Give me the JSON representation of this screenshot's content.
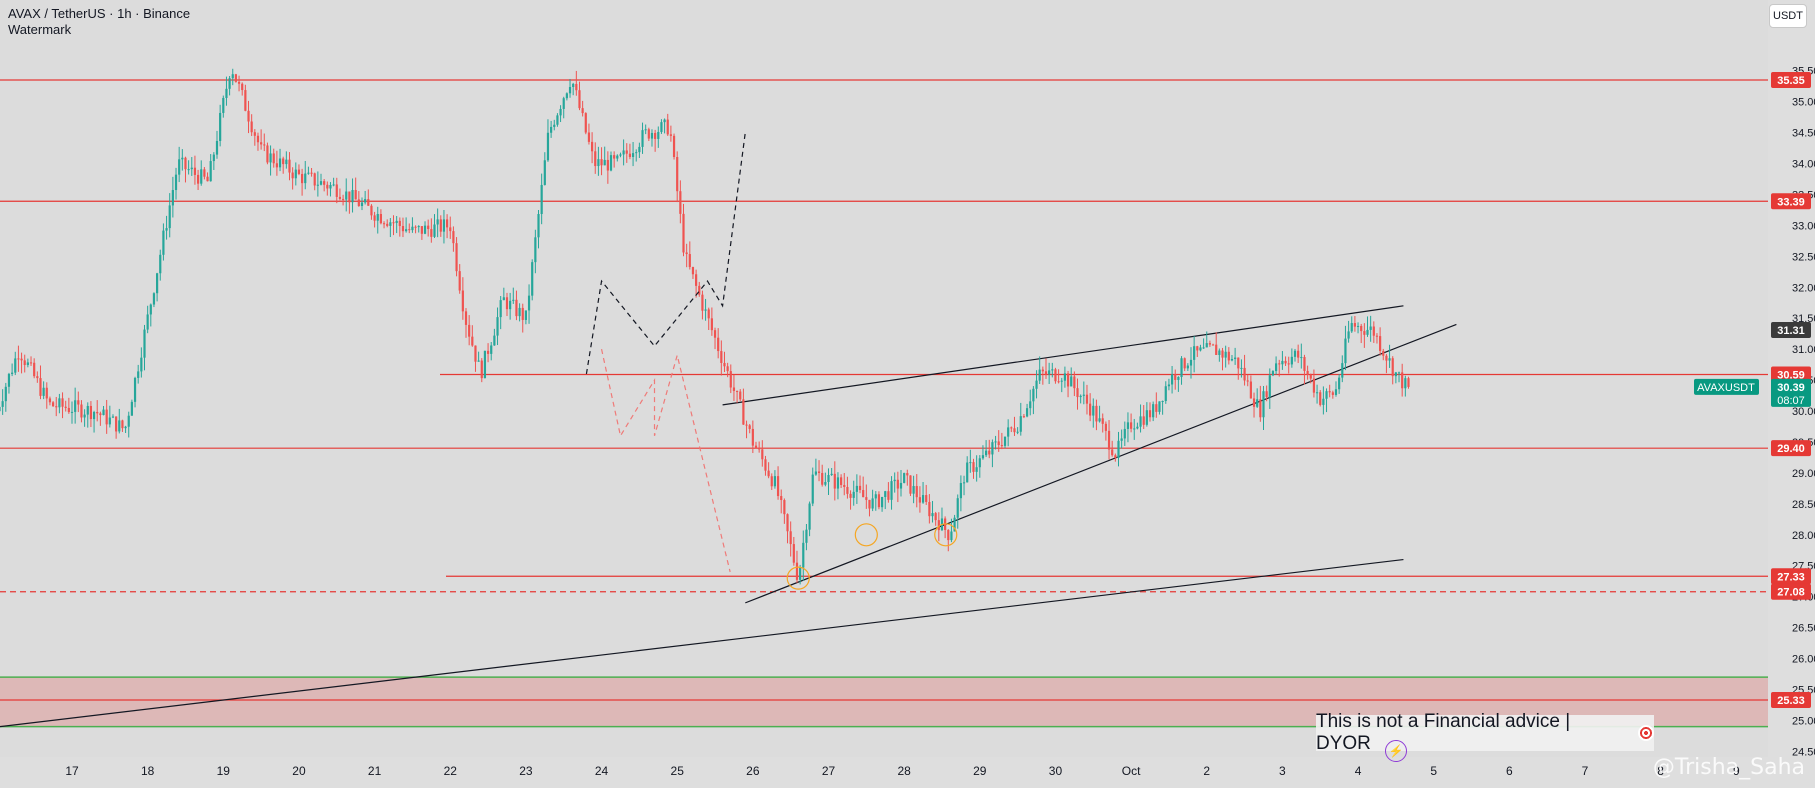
{
  "header": {
    "symbol": "AVAX / TetherUS · 1h · Binance",
    "watermark": "Watermark"
  },
  "currency_button": "USDT",
  "disclaimer": "This is not a Financial advice | DYOR",
  "handle": "@Trisha_Saha",
  "colors": {
    "background": "#dcdcdc",
    "up": "#26a69a",
    "down": "#ef5350",
    "resistance": "#e53935",
    "support_zone": "#4caf50",
    "symbol_tag": "#089981"
  },
  "chart_data": {
    "type": "candlestick",
    "symbol": "AVAXUSDT",
    "timeframe": "1h",
    "ylim": [
      24.28,
      36.4
    ],
    "y_ticks": [
      "24.50",
      "25.00",
      "25.50",
      "26.00",
      "26.50",
      "27.00",
      "27.50",
      "28.00",
      "28.50",
      "29.00",
      "29.50",
      "30.00",
      "30.50",
      "31.00",
      "31.50",
      "32.00",
      "32.50",
      "33.00",
      "33.50",
      "34.00",
      "34.50",
      "35.00",
      "35.50"
    ],
    "x_ticks": [
      "17",
      "18",
      "19",
      "20",
      "21",
      "22",
      "23",
      "24",
      "25",
      "26",
      "27",
      "28",
      "29",
      "30",
      "Oct",
      "2",
      "3",
      "4",
      "5",
      "6",
      "7",
      "8",
      "9"
    ],
    "horizontal_levels": [
      {
        "label": "35.35",
        "value": 35.35
      },
      {
        "label": "33.39",
        "value": 33.39
      },
      {
        "label": "31.31",
        "value": 31.31,
        "style": "gray"
      },
      {
        "label": "30.59",
        "value": 30.59
      },
      {
        "label": "29.40",
        "value": 29.4
      },
      {
        "label": "27.33",
        "value": 27.33
      },
      {
        "label": "27.08",
        "value": 27.08,
        "style": "dashed"
      },
      {
        "label": "25.33",
        "value": 25.33
      }
    ],
    "current_price": {
      "symbol": "AVAXUSDT",
      "price": "30.39",
      "countdown": "08:07"
    },
    "support_zone": [
      24.9,
      25.7
    ],
    "price_path": [
      {
        "day": 16.0,
        "price": 30.0
      },
      {
        "day": 16.3,
        "price": 31.0
      },
      {
        "day": 16.7,
        "price": 30.1
      },
      {
        "day": 17.3,
        "price": 30.0
      },
      {
        "day": 17.7,
        "price": 29.7
      },
      {
        "day": 18.0,
        "price": 31.5
      },
      {
        "day": 18.4,
        "price": 34.0
      },
      {
        "day": 18.8,
        "price": 33.7
      },
      {
        "day": 19.1,
        "price": 35.6
      },
      {
        "day": 19.5,
        "price": 34.2
      },
      {
        "day": 20.0,
        "price": 33.8
      },
      {
        "day": 20.5,
        "price": 33.6
      },
      {
        "day": 21.0,
        "price": 33.2
      },
      {
        "day": 21.5,
        "price": 32.9
      },
      {
        "day": 22.0,
        "price": 33.0
      },
      {
        "day": 22.2,
        "price": 31.5
      },
      {
        "day": 22.4,
        "price": 30.6
      },
      {
        "day": 22.7,
        "price": 31.8
      },
      {
        "day": 23.0,
        "price": 31.5
      },
      {
        "day": 23.3,
        "price": 34.5
      },
      {
        "day": 23.6,
        "price": 35.4
      },
      {
        "day": 23.9,
        "price": 34.0
      },
      {
        "day": 24.2,
        "price": 34.0
      },
      {
        "day": 24.6,
        "price": 34.5
      },
      {
        "day": 24.9,
        "price": 34.6
      },
      {
        "day": 25.1,
        "price": 32.5
      },
      {
        "day": 25.4,
        "price": 31.5
      },
      {
        "day": 25.7,
        "price": 30.5
      },
      {
        "day": 26.0,
        "price": 29.5
      },
      {
        "day": 26.3,
        "price": 28.8
      },
      {
        "day": 26.6,
        "price": 27.3
      },
      {
        "day": 26.8,
        "price": 29.0
      },
      {
        "day": 27.2,
        "price": 28.8
      },
      {
        "day": 27.6,
        "price": 28.5
      },
      {
        "day": 28.0,
        "price": 28.9
      },
      {
        "day": 28.4,
        "price": 28.3
      },
      {
        "day": 28.6,
        "price": 28.0
      },
      {
        "day": 28.8,
        "price": 29.0
      },
      {
        "day": 29.1,
        "price": 29.3
      },
      {
        "day": 29.5,
        "price": 29.8
      },
      {
        "day": 29.8,
        "price": 30.6
      },
      {
        "day": 30.1,
        "price": 30.6
      },
      {
        "day": 30.5,
        "price": 30.0
      },
      {
        "day": 30.8,
        "price": 29.3
      },
      {
        "day": 31.0,
        "price": 29.8
      },
      {
        "day": 31.3,
        "price": 30.0
      },
      {
        "day": 31.5,
        "price": 30.5
      },
      {
        "day": 31.8,
        "price": 30.9
      },
      {
        "day": 32.1,
        "price": 31.0
      },
      {
        "day": 32.4,
        "price": 30.8
      },
      {
        "day": 32.7,
        "price": 30.0
      },
      {
        "day": 32.9,
        "price": 30.8
      },
      {
        "day": 33.2,
        "price": 30.9
      },
      {
        "day": 33.5,
        "price": 30.2
      },
      {
        "day": 33.7,
        "price": 30.3
      },
      {
        "day": 33.9,
        "price": 31.4
      },
      {
        "day": 34.2,
        "price": 31.3
      },
      {
        "day": 34.5,
        "price": 30.6
      },
      {
        "day": 34.7,
        "price": 30.3
      }
    ]
  }
}
